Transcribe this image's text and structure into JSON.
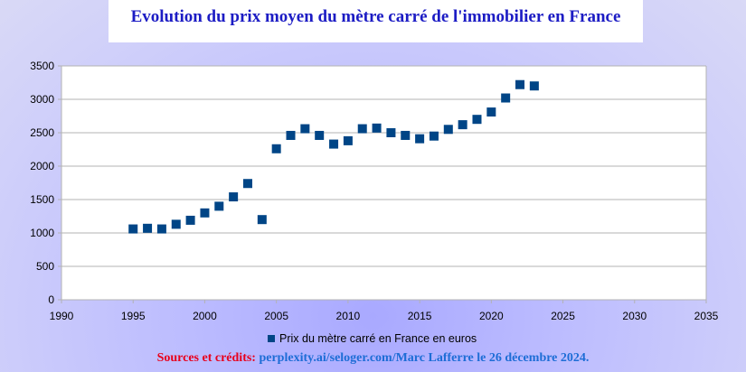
{
  "title": "Evolution du prix moyen du mètre carré de l'immobilier en France",
  "footer": {
    "label": "Sources et crédits:",
    "credit": "perplexity.ai/seloger.com/Marc Lafferre le 26 décembre 2024."
  },
  "colors": {
    "marker": "#004586",
    "title": "#1c1cc4",
    "footer_label": "#e8001c",
    "footer_credit": "#1d6dd6"
  },
  "chart_data": {
    "type": "scatter",
    "title": "Evolution du prix moyen du mètre carré de l'immobilier en France",
    "xlabel": "",
    "ylabel": "",
    "xlim": [
      1990,
      2035
    ],
    "ylim": [
      0,
      3500
    ],
    "x_ticks": [
      1990,
      1995,
      2000,
      2005,
      2010,
      2015,
      2020,
      2025,
      2030,
      2035
    ],
    "y_ticks": [
      0,
      500,
      1000,
      1500,
      2000,
      2500,
      3000,
      3500
    ],
    "grid": "horizontal",
    "legend_position": "bottom",
    "series": [
      {
        "name": "Prix du mètre carré en France en euros",
        "marker": "square",
        "color": "#004586",
        "x": [
          1995,
          1996,
          1997,
          1998,
          1999,
          2000,
          2001,
          2002,
          2003,
          2004,
          2005,
          2006,
          2007,
          2008,
          2009,
          2010,
          2011,
          2012,
          2013,
          2014,
          2015,
          2016,
          2017,
          2018,
          2019,
          2020,
          2021,
          2022,
          2023
        ],
        "y": [
          1060,
          1070,
          1060,
          1130,
          1190,
          1300,
          1400,
          1540,
          1740,
          1200,
          2260,
          2460,
          2560,
          2460,
          2330,
          2380,
          2560,
          2570,
          2500,
          2460,
          2410,
          2450,
          2550,
          2620,
          2700,
          2810,
          3020,
          3220,
          3200
        ]
      }
    ]
  }
}
